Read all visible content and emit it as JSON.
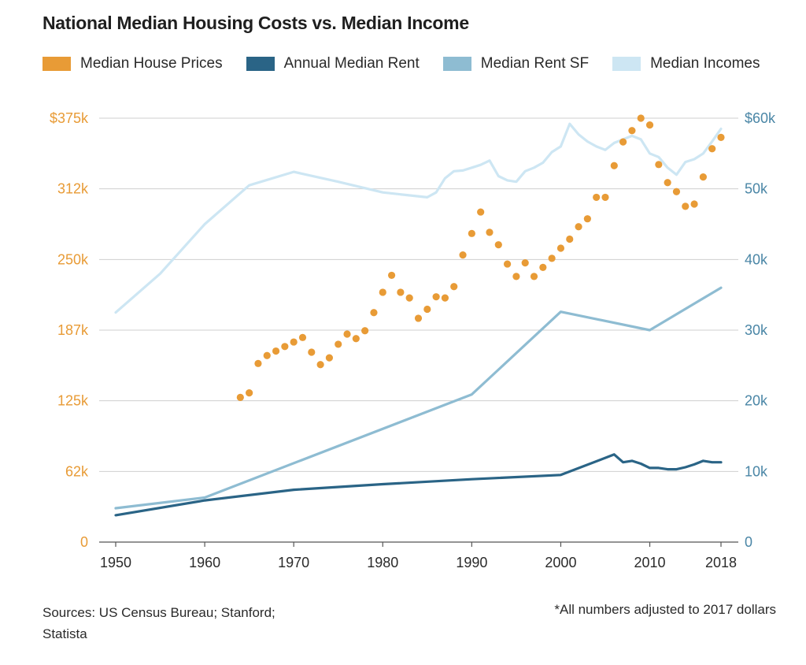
{
  "title": "National Median Housing Costs vs. Median Income",
  "legend": [
    {
      "label": "Median House Prices",
      "color": "#e89b36"
    },
    {
      "label": "Annual Median Rent",
      "color": "#2a6486"
    },
    {
      "label": "Median Rent SF",
      "color": "#8ebcd2"
    },
    {
      "label": "Median Incomes",
      "color": "#cde6f3"
    }
  ],
  "footer": {
    "sources": "Sources: US Census Bureau; Stanford; Statista",
    "note": "*All numbers adjusted to 2017  dollars"
  },
  "chart_data": {
    "type": "line",
    "title": "National Median Housing Costs vs. Median Income",
    "xlim": [
      1950,
      2018
    ],
    "x_ticks": [
      "1950",
      "1960",
      "1970",
      "1980",
      "1990",
      "2000",
      "2010",
      "2018"
    ],
    "x_tick_values": [
      1950,
      1960,
      1970,
      1980,
      1990,
      2000,
      2010,
      2018
    ],
    "y_left": {
      "ylim": [
        0,
        375000
      ],
      "tick_labels": [
        "0",
        "62k",
        "125k",
        "187k",
        "250k",
        "312k",
        "$375k"
      ],
      "color": "#e89b36"
    },
    "y_right": {
      "ylim": [
        0,
        60000
      ],
      "tick_labels": [
        "0",
        "10k",
        "20k",
        "30k",
        "40k",
        "50k",
        "$60k"
      ],
      "color": "#4a86a6"
    },
    "grid": true,
    "series": [
      {
        "name": "Median House Prices",
        "type": "scatter",
        "axis": "left",
        "color": "#e89b36",
        "x": [
          1964,
          1965,
          1966,
          1967,
          1968,
          1969,
          1970,
          1971,
          1972,
          1973,
          1974,
          1975,
          1976,
          1977,
          1978,
          1979,
          1980,
          1981,
          1982,
          1983,
          1984,
          1985,
          1986,
          1987,
          1988,
          1989,
          1990,
          1991,
          1992,
          1993,
          1994,
          1995,
          1996,
          1997,
          1998,
          1999,
          2000,
          2001,
          2002,
          2003,
          2004,
          2005,
          2006,
          2007,
          2008,
          2009,
          2010,
          2011,
          2012,
          2013,
          2014,
          2015,
          2016,
          2017,
          2018
        ],
        "y": [
          128000,
          132000,
          158000,
          165000,
          169000,
          173000,
          177000,
          181000,
          168000,
          157000,
          163000,
          175000,
          184000,
          180000,
          187000,
          203000,
          221000,
          236000,
          221000,
          216000,
          198000,
          206000,
          217000,
          216000,
          226000,
          254000,
          273000,
          292000,
          274000,
          263000,
          246000,
          235000,
          247000,
          235000,
          243000,
          251000,
          260000,
          268000,
          279000,
          286000,
          305000,
          305000,
          333000,
          354000,
          364000,
          375000,
          369000,
          334000,
          318000,
          310000,
          297000,
          299000,
          323000,
          348000,
          358000
        ],
        "_x_note": "House price dots span mid-1960s to 2018"
      },
      {
        "name": "Annual Median Rent",
        "axis": "right",
        "color": "#2a6486",
        "x": [
          1950,
          1960,
          1970,
          1980,
          1990,
          2000,
          2006,
          2007,
          2008,
          2009,
          2010,
          2011,
          2012,
          2013,
          2014,
          2015,
          2016,
          2017,
          2018
        ],
        "y": [
          3800,
          5900,
          7400,
          8200,
          8900,
          9500,
          12400,
          11300,
          11500,
          11100,
          10500,
          10500,
          10300,
          10300,
          10600,
          11000,
          11500,
          11300,
          11300
        ]
      },
      {
        "name": "Median Rent SF",
        "axis": "right",
        "color": "#8ebcd2",
        "x": [
          1950,
          1960,
          1990,
          2000,
          2010,
          2018
        ],
        "y": [
          4800,
          6300,
          20900,
          32600,
          30000,
          36000
        ]
      },
      {
        "name": "Median Incomes",
        "axis": "right",
        "color": "#cde6f3",
        "x": [
          1950,
          1955,
          1960,
          1965,
          1970,
          1975,
          1980,
          1985,
          1986,
          1987,
          1988,
          1989,
          1990,
          1991,
          1992,
          1993,
          1994,
          1995,
          1996,
          1997,
          1998,
          1999,
          2000,
          2001,
          2002,
          2003,
          2004,
          2005,
          2006,
          2007,
          2008,
          2009,
          2010,
          2011,
          2012,
          2013,
          2014,
          2015,
          2016,
          2017,
          2018
        ],
        "y": [
          32500,
          38000,
          45000,
          50500,
          52400,
          51000,
          49500,
          48800,
          49500,
          51500,
          52500,
          52600,
          53000,
          53400,
          54000,
          51800,
          51200,
          51000,
          52500,
          53000,
          53700,
          55200,
          56000,
          59200,
          57700,
          56700,
          56000,
          55500,
          56500,
          57000,
          57500,
          57000,
          55000,
          54500,
          53000,
          52000,
          53800,
          54200,
          55000,
          56700,
          58500
        ]
      }
    ]
  }
}
